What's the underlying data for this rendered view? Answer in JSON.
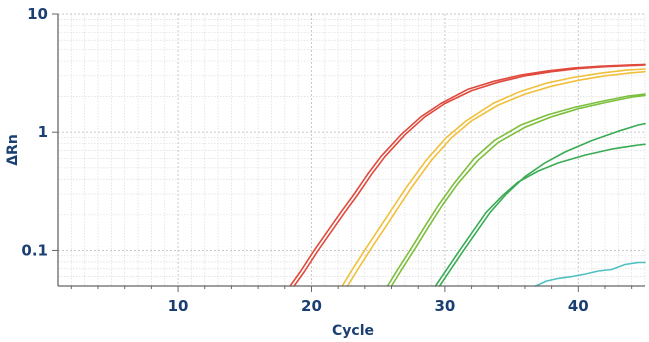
{
  "chart_data": {
    "type": "line",
    "title": "",
    "xlabel": "Cycle",
    "ylabel": "ΔRn",
    "xlim": [
      1,
      45
    ],
    "ylim": [
      0.05,
      10
    ],
    "y_scale": "log",
    "grid": true,
    "x_ticks": [
      10,
      20,
      30,
      40
    ],
    "x_tick_labels": [
      "10",
      "20",
      "30",
      "40"
    ],
    "y_ticks": [
      0.1,
      1,
      10
    ],
    "y_tick_labels": [
      "0.1",
      "1",
      "10"
    ],
    "series": [
      {
        "color": "#e0493c",
        "x": [
          18.7,
          19.5,
          20.5,
          21.5,
          22.5,
          23.5,
          24.5,
          25.5,
          27,
          28.5,
          30,
          32,
          34,
          36,
          38,
          40,
          42,
          44,
          45
        ],
        "y": [
          0.05,
          0.067,
          0.1,
          0.145,
          0.21,
          0.3,
          0.44,
          0.62,
          0.95,
          1.35,
          1.75,
          2.25,
          2.65,
          3.0,
          3.25,
          3.45,
          3.58,
          3.66,
          3.7
        ]
      },
      {
        "color": "#e0493c",
        "x": [
          18.4,
          19.2,
          20.2,
          21.2,
          22.2,
          23.2,
          24.2,
          25.2,
          26.7,
          28.2,
          29.7,
          31.7,
          33.7,
          35.7,
          37.7,
          39.7,
          41.7,
          43.7,
          45
        ],
        "y": [
          0.05,
          0.067,
          0.1,
          0.145,
          0.21,
          0.3,
          0.44,
          0.62,
          0.95,
          1.35,
          1.75,
          2.3,
          2.7,
          3.05,
          3.3,
          3.5,
          3.62,
          3.7,
          3.75
        ]
      },
      {
        "color": "#f0bf3b",
        "x": [
          22.7,
          23.5,
          24.5,
          25.5,
          26.5,
          27.5,
          29,
          30.5,
          32,
          34,
          36,
          38,
          40,
          42,
          44,
          45
        ],
        "y": [
          0.05,
          0.07,
          0.105,
          0.155,
          0.23,
          0.34,
          0.58,
          0.9,
          1.25,
          1.7,
          2.1,
          2.45,
          2.75,
          3.0,
          3.18,
          3.25
        ]
      },
      {
        "color": "#f0bf3b",
        "x": [
          22.3,
          23.1,
          24.1,
          25.1,
          26.1,
          27.1,
          28.6,
          30.1,
          31.6,
          33.6,
          35.6,
          37.6,
          39.6,
          41.6,
          43.6,
          45
        ],
        "y": [
          0.05,
          0.07,
          0.105,
          0.155,
          0.23,
          0.34,
          0.58,
          0.9,
          1.25,
          1.75,
          2.2,
          2.6,
          2.9,
          3.15,
          3.35,
          3.42
        ]
      },
      {
        "color": "#7cbf3d",
        "x": [
          26.0,
          26.8,
          27.8,
          28.8,
          29.8,
          31,
          32.5,
          34,
          36,
          38,
          40,
          42,
          44,
          45
        ],
        "y": [
          0.05,
          0.07,
          0.105,
          0.16,
          0.24,
          0.37,
          0.58,
          0.82,
          1.1,
          1.35,
          1.58,
          1.78,
          1.98,
          2.05
        ]
      },
      {
        "color": "#7cbf3d",
        "x": [
          25.7,
          26.5,
          27.5,
          28.5,
          29.5,
          30.7,
          32.2,
          33.7,
          35.7,
          37.7,
          39.7,
          41.7,
          43.7,
          45
        ],
        "y": [
          0.05,
          0.07,
          0.105,
          0.16,
          0.24,
          0.37,
          0.6,
          0.85,
          1.15,
          1.4,
          1.62,
          1.82,
          2.02,
          2.1
        ]
      },
      {
        "color": "#3aab55",
        "x": [
          29.6,
          30.4,
          31.4,
          32.4,
          33.4,
          34.6,
          36,
          37.5,
          39,
          41,
          43,
          44.5,
          45
        ],
        "y": [
          0.05,
          0.068,
          0.1,
          0.145,
          0.21,
          0.3,
          0.42,
          0.55,
          0.68,
          0.85,
          1.02,
          1.15,
          1.18
        ]
      },
      {
        "color": "#3aab55",
        "x": [
          29.3,
          30.1,
          31.1,
          32.1,
          33.1,
          34.3,
          35.5,
          37,
          38.5,
          40.5,
          42.5,
          44.5,
          45
        ],
        "y": [
          0.05,
          0.068,
          0.1,
          0.145,
          0.21,
          0.29,
          0.38,
          0.47,
          0.55,
          0.64,
          0.72,
          0.78,
          0.79
        ]
      },
      {
        "color": "#4fc0c2",
        "x": [
          36.8,
          37.6,
          38.5,
          39.5,
          40.5,
          41.5,
          42.5,
          43.5,
          44.5,
          45
        ],
        "y": [
          0.05,
          0.055,
          0.058,
          0.06,
          0.063,
          0.067,
          0.069,
          0.076,
          0.079,
          0.079
        ]
      }
    ]
  }
}
